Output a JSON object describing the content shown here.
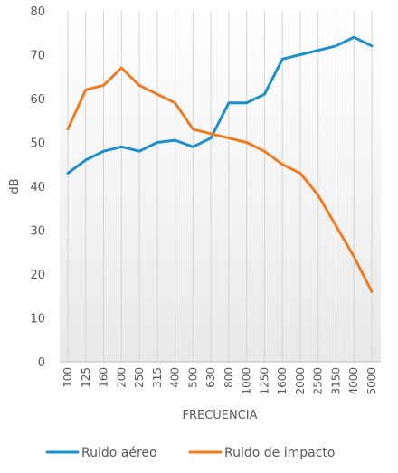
{
  "chart_data": {
    "type": "line",
    "categories": [
      "100",
      "125",
      "160",
      "200",
      "250",
      "315",
      "400",
      "500",
      "630",
      "800",
      "1000",
      "1250",
      "1600",
      "2000",
      "2500",
      "3150",
      "4000",
      "5000"
    ],
    "series": [
      {
        "name": "Ruido aéreo",
        "color": "#1b8fd0",
        "values": [
          43,
          46,
          48,
          49,
          48,
          50,
          50.5,
          49,
          51,
          59,
          59,
          61,
          69,
          70,
          71,
          72,
          74,
          72
        ]
      },
      {
        "name": "Ruido de impacto",
        "color": "#f07c22",
        "values": [
          53,
          62,
          63,
          67,
          63,
          61,
          59,
          53,
          52,
          51,
          50,
          48,
          45,
          43,
          38,
          31,
          24,
          16
        ]
      }
    ],
    "y_ticks": [
      "0",
      "10",
      "20",
      "30",
      "40",
      "50",
      "60",
      "70",
      "80"
    ],
    "ylim": [
      0,
      80
    ],
    "xlabel": "FRECUENCIA",
    "ylabel": "dB",
    "legend_position": "bottom",
    "grid": "vertical"
  }
}
